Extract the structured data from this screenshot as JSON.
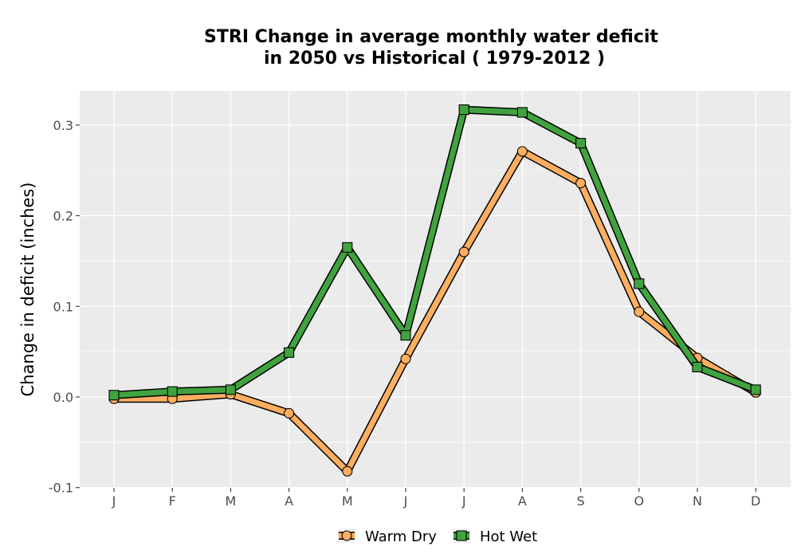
{
  "chart_data": {
    "type": "line",
    "title_lines": [
      "STRI  Change in average monthly water deficit",
      "in 2050 vs Historical ( 1979-2012 )"
    ],
    "xlabel": "",
    "ylabel": "Change in deficit (inches)",
    "categories": [
      "J",
      "F",
      "M",
      "A",
      "M",
      "J",
      "J",
      "A",
      "S",
      "O",
      "N",
      "D"
    ],
    "yticks": [
      -0.1,
      0.0,
      0.1,
      0.2,
      0.3
    ],
    "ytick_labels": [
      "-0.1",
      "0.0",
      "0.1",
      "0.2",
      "0.3"
    ],
    "ylim": [
      -0.1,
      0.335
    ],
    "grid": true,
    "legend_position": "bottom",
    "series": [
      {
        "name": "Warm Dry",
        "marker": "circle",
        "color": "#FDAE61",
        "values": [
          -0.002,
          -0.002,
          0.003,
          -0.018,
          -0.082,
          0.042,
          0.16,
          0.271,
          0.236,
          0.094,
          0.043,
          0.005
        ]
      },
      {
        "name": "Hot Wet",
        "marker": "square",
        "color": "#41A33F",
        "values": [
          0.002,
          0.006,
          0.008,
          0.049,
          0.165,
          0.068,
          0.317,
          0.314,
          0.28,
          0.125,
          0.033,
          0.008
        ]
      }
    ]
  }
}
